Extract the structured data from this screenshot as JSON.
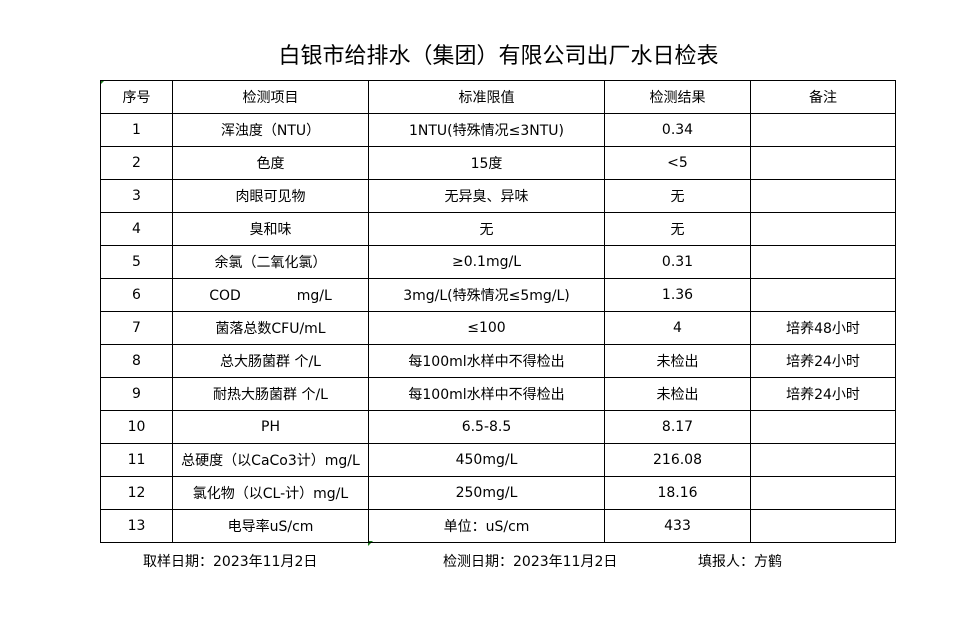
{
  "title": "白银市给排水（集团）有限公司出厂水日检表",
  "headers": [
    "序号",
    "检测项目",
    "标准限值",
    "检测结果",
    "备注"
  ],
  "rows": [
    [
      "1",
      "浑浊度（NTU）",
      "1NTU(特殊情况≤3NTU)",
      "0.34",
      ""
    ],
    [
      "2",
      "色度",
      "15度",
      "<5",
      ""
    ],
    [
      "3",
      "肉眼可见物",
      "无异臭、异味",
      "无",
      ""
    ],
    [
      "4",
      "臭和味",
      "无",
      "无",
      ""
    ],
    [
      "5",
      "余氯（二氧化氯）",
      "≥0.1mg/L",
      "0.31",
      ""
    ],
    [
      "6",
      "COD　　　　mg/L",
      "3mg/L(特殊情况≤5mg/L)",
      "1.36",
      ""
    ],
    [
      "7",
      "菌落总数CFU/mL",
      "≤100",
      "4",
      "培养48小时"
    ],
    [
      "8",
      "总大肠菌群 个/L",
      "每100ml水样中不得检出",
      "未检出",
      "培养24小时"
    ],
    [
      "9",
      "耐热大肠菌群 个/L",
      "每100ml水样中不得检出",
      "未检出",
      "培养24小时"
    ],
    [
      "10",
      "PH",
      "6.5-8.5",
      "8.17",
      ""
    ],
    [
      "11",
      "总硬度（以CaCo3计）mg/L",
      "450mg/L",
      "216.08",
      ""
    ],
    [
      "12",
      "氯化物（以CL-计）mg/L",
      "250mg/L",
      "18.16",
      ""
    ],
    [
      "13",
      "电导率uS/cm",
      "单位：uS/cm",
      "433",
      ""
    ]
  ],
  "footer": {
    "sampling_date": "取样日期：2023年11月2日",
    "test_date": "检测日期：2023年11月2日",
    "reporter": "填报人：方鹤"
  }
}
